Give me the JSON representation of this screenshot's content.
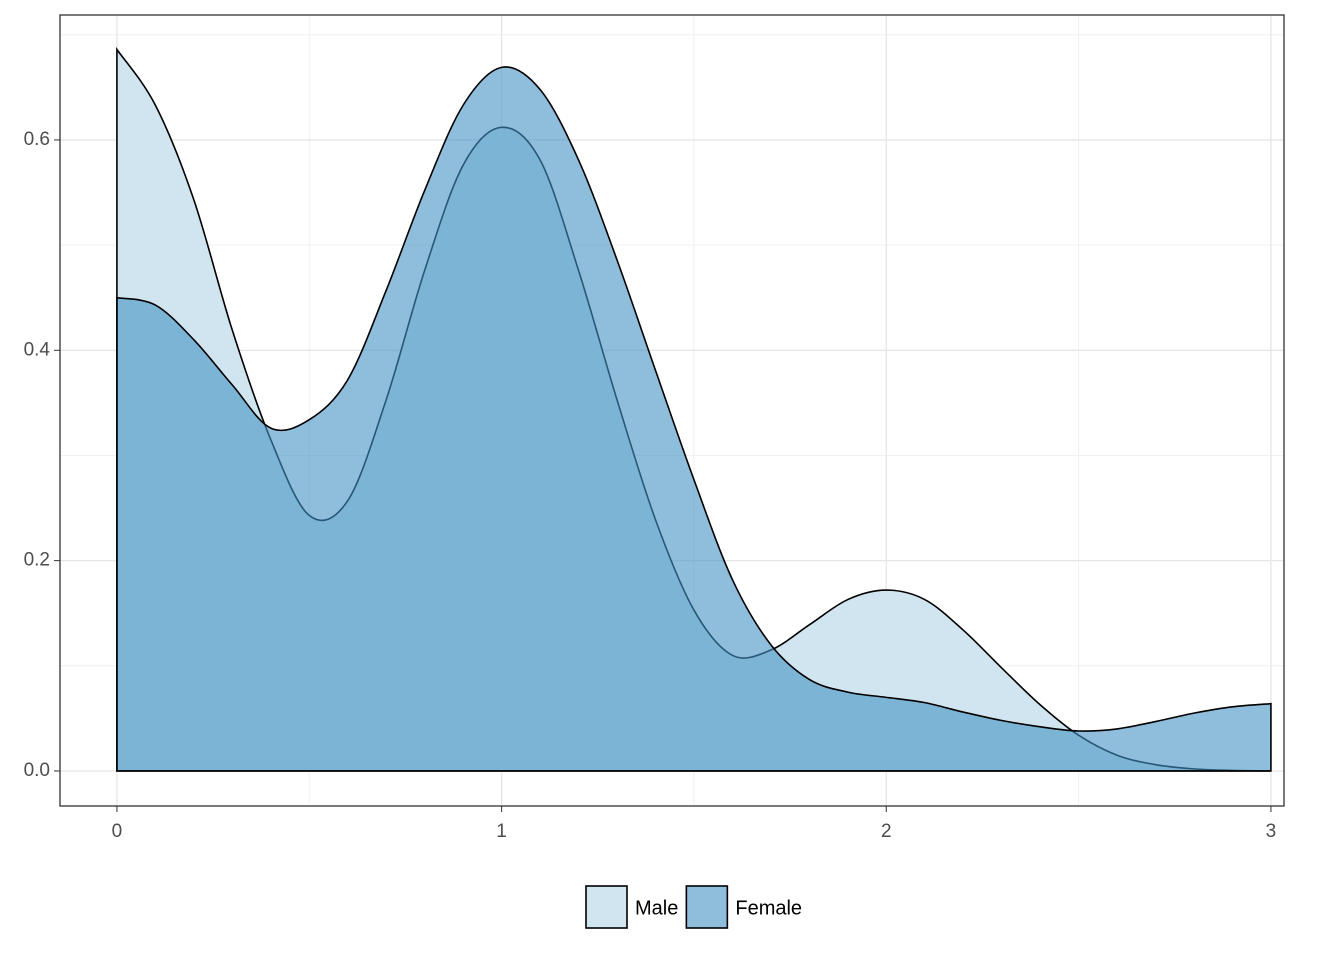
{
  "chart_data": {
    "type": "area",
    "x": [
      0,
      0.1,
      0.2,
      0.3,
      0.4,
      0.5,
      0.6,
      0.7,
      0.8,
      0.9,
      1.0,
      1.1,
      1.2,
      1.3,
      1.4,
      1.5,
      1.6,
      1.7,
      1.8,
      1.9,
      2.0,
      2.1,
      2.2,
      2.3,
      2.4,
      2.5,
      2.6,
      2.7,
      2.8,
      2.9,
      3.0
    ],
    "series": [
      {
        "name": "Male",
        "color": "#d1e5f0",
        "values": [
          0.686,
          0.633,
          0.543,
          0.419,
          0.315,
          0.243,
          0.257,
          0.353,
          0.476,
          0.576,
          0.612,
          0.581,
          0.476,
          0.353,
          0.239,
          0.153,
          0.11,
          0.115,
          0.139,
          0.163,
          0.172,
          0.163,
          0.134,
          0.098,
          0.063,
          0.034,
          0.015,
          0.006,
          0.002,
          0.0005,
          0.0
        ]
      },
      {
        "name": "Female",
        "color": "#4393c3",
        "values": [
          0.45,
          0.443,
          0.41,
          0.367,
          0.326,
          0.334,
          0.372,
          0.457,
          0.552,
          0.633,
          0.669,
          0.648,
          0.581,
          0.486,
          0.381,
          0.277,
          0.182,
          0.12,
          0.087,
          0.075,
          0.07,
          0.065,
          0.056,
          0.048,
          0.042,
          0.038,
          0.04,
          0.047,
          0.055,
          0.061,
          0.064
        ]
      }
    ],
    "fill_opacity": 0.6,
    "xlim": [
      -0.148,
      3.034
    ],
    "xticks": [
      0,
      1,
      2,
      3
    ],
    "x_minor_ticks": [
      0.5,
      1.5,
      2.5
    ],
    "ylim": [
      -0.0333,
      0.7188
    ],
    "yticks": [
      {
        "value": 0,
        "label": "0.0"
      },
      {
        "value": 0.2,
        "label": "0.2"
      },
      {
        "value": 0.4,
        "label": "0.4"
      },
      {
        "value": 0.6,
        "label": "0.6"
      }
    ],
    "y_minor_ticks": [
      0.1,
      0.3,
      0.5,
      0.7
    ],
    "grid": true,
    "legend": "bottom"
  }
}
